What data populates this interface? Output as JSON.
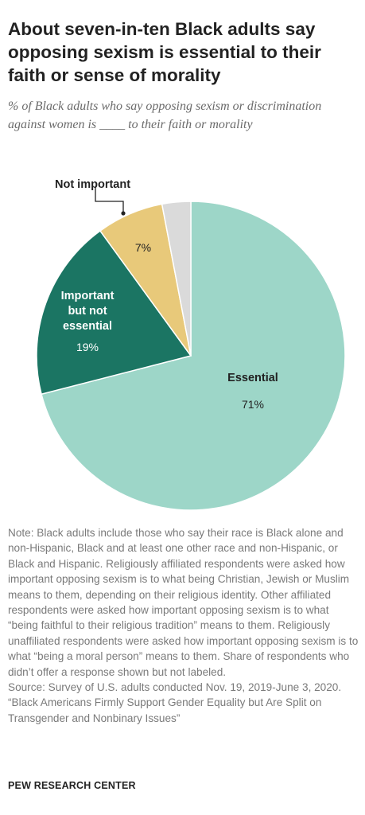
{
  "title": "About seven-in-ten Black adults say opposing sexism is essential to their faith or sense of morality",
  "subtitle": "% of Black adults who say opposing sexism or discrimination against women is ____ to their faith or morality",
  "chart_data": {
    "type": "pie",
    "slices": [
      {
        "label": "Essential",
        "value": 71,
        "value_label": "71%",
        "color": "#9dd6c8"
      },
      {
        "label": "Important but not essential",
        "value": 19,
        "value_label": "19%",
        "color": "#1b7563"
      },
      {
        "label": "Not important",
        "value": 7,
        "value_label": "7%",
        "color": "#e8c97a"
      },
      {
        "label": "",
        "value": 3,
        "value_label": "",
        "color": "#dadada"
      }
    ]
  },
  "note": "Note: Black adults include those who say their race is Black alone and non-Hispanic, Black and at least one other race and non-Hispanic, or Black and Hispanic. Religiously affiliated respondents were asked how important opposing sexism is to what being Christian, Jewish or Muslim means to them, depending on their religious identity. Other affiliated respondents were asked how important opposing sexism is to what “being faithful to their religious tradition” means to them. Religiously unaffiliated respondents were asked how important opposing sexism is to what “being a moral person” means to them. Share of respondents who didn’t offer a response shown but not labeled.",
  "source": "Source: Survey of U.S. adults conducted Nov. 19, 2019-June 3, 2020.",
  "report": "“Black Americans Firmly Support Gender Equality but Are Split on Transgender and Nonbinary Issues”",
  "footer": "PEW RESEARCH CENTER"
}
